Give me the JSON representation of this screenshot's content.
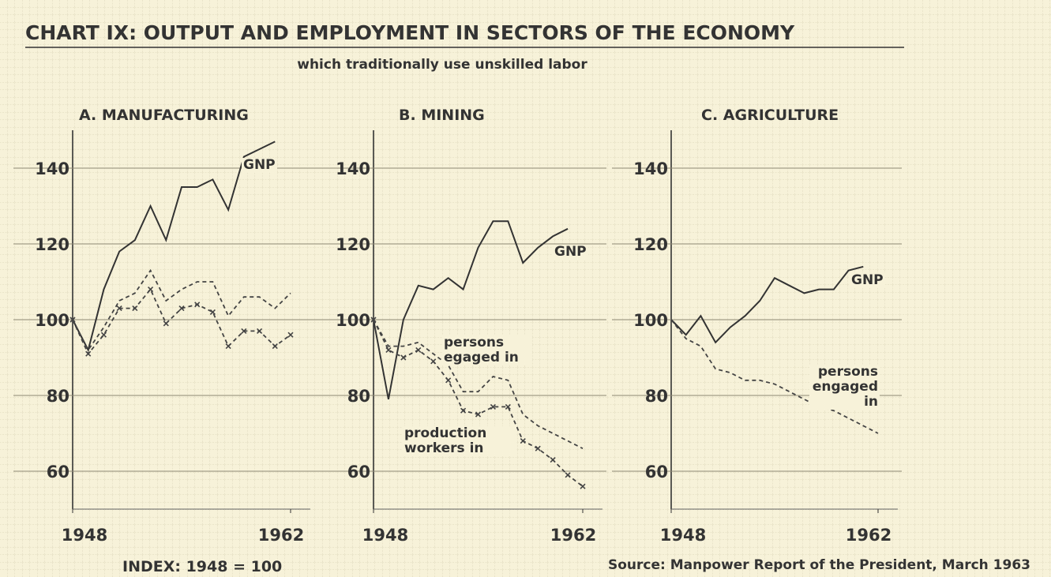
{
  "title": "CHART IX: OUTPUT AND EMPLOYMENT IN SECTORS OF THE ECONOMY",
  "subtitle": "which traditionally use unskilled labor",
  "note": "INDEX: 1948 = 100",
  "source": "Source: Manpower Report of the President, March 1963",
  "chart_data": [
    {
      "type": "line",
      "title": "A. MANUFACTURING",
      "x": [
        1948,
        1949,
        1950,
        1951,
        1952,
        1953,
        1954,
        1955,
        1956,
        1957,
        1958,
        1959,
        1960,
        1961,
        1962
      ],
      "xlim": [
        1948,
        1962
      ],
      "xticks": [
        1948,
        1962
      ],
      "ylim": [
        50,
        150
      ],
      "yticks": [
        60,
        80,
        100,
        120,
        140
      ],
      "grid": true,
      "series": [
        {
          "name": "GNP",
          "color": "#333333",
          "dash": false,
          "values": [
            100,
            92,
            108,
            118,
            121,
            130,
            121,
            135,
            135,
            137,
            129,
            143,
            145,
            147,
            null
          ]
        },
        {
          "color": "#444444",
          "dash": true,
          "values": [
            100,
            92,
            98,
            105,
            107,
            113,
            105,
            108,
            110,
            110,
            101,
            106,
            106,
            103,
            107
          ]
        },
        {
          "color": "#444444",
          "dash": true,
          "marker": "x",
          "values": [
            100,
            91,
            96,
            103,
            103,
            108,
            99,
            103,
            104,
            102,
            93,
            97,
            97,
            93,
            96
          ]
        }
      ]
    },
    {
      "type": "line",
      "title": "B. MINING",
      "x": [
        1948,
        1949,
        1950,
        1951,
        1952,
        1953,
        1954,
        1955,
        1956,
        1957,
        1958,
        1959,
        1960,
        1961,
        1962
      ],
      "xlim": [
        1948,
        1962
      ],
      "xticks": [
        1948,
        1962
      ],
      "ylim": [
        50,
        150
      ],
      "yticks": [
        60,
        80,
        100,
        120,
        140
      ],
      "grid": true,
      "series": [
        {
          "name": "GNP",
          "color": "#333333",
          "dash": false,
          "values": [
            100,
            79,
            100,
            109,
            108,
            111,
            108,
            119,
            126,
            126,
            115,
            119,
            122,
            124,
            null
          ]
        },
        {
          "name": "persons egaged in",
          "color": "#444444",
          "dash": true,
          "values": [
            100,
            93,
            93,
            94,
            91,
            88,
            81,
            81,
            85,
            84,
            75,
            72,
            70,
            68,
            66
          ]
        },
        {
          "name": "production workers in",
          "color": "#444444",
          "dash": true,
          "marker": "x",
          "values": [
            100,
            92,
            90,
            92,
            89,
            84,
            76,
            75,
            77,
            77,
            68,
            66,
            63,
            59,
            56
          ]
        }
      ]
    },
    {
      "type": "line",
      "title": "C. AGRICULTURE",
      "x": [
        1948,
        1949,
        1950,
        1951,
        1952,
        1953,
        1954,
        1955,
        1956,
        1957,
        1958,
        1959,
        1960,
        1961,
        1962
      ],
      "xlim": [
        1948,
        1962
      ],
      "xticks": [
        1948,
        1962
      ],
      "ylim": [
        50,
        150
      ],
      "yticks": [
        60,
        80,
        100,
        120,
        140
      ],
      "grid": true,
      "series": [
        {
          "name": "GNP",
          "color": "#333333",
          "dash": false,
          "values": [
            100,
            96,
            101,
            94,
            98,
            101,
            105,
            111,
            109,
            107,
            108,
            108,
            113,
            114,
            null
          ]
        },
        {
          "name": "persons engaged in",
          "color": "#444444",
          "dash": true,
          "values": [
            100,
            95,
            93,
            87,
            86,
            84,
            84,
            83,
            81,
            79,
            77,
            76,
            74,
            72,
            70
          ]
        }
      ]
    }
  ]
}
